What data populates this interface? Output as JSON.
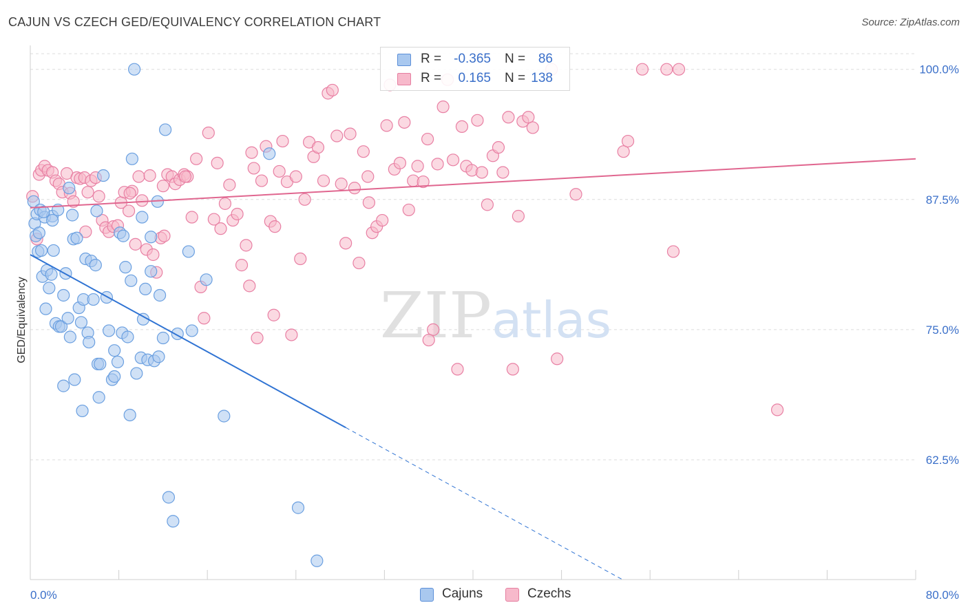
{
  "header": {
    "title": "CAJUN VS CZECH GED/EQUIVALENCY CORRELATION CHART",
    "source": "Source: ZipAtlas.com"
  },
  "legend": {
    "rows": [
      {
        "r_label": "R =",
        "r_value": "-0.365",
        "n_label": "N =",
        "n_value": "86",
        "color": "#a9c8ef",
        "border": "#5b8fd8"
      },
      {
        "r_label": "R =",
        "r_value": "0.165",
        "n_label": "N =",
        "n_value": "138",
        "color": "#f7b9cb",
        "border": "#e57ea0"
      }
    ],
    "bottom": [
      {
        "label": "Cajuns",
        "color": "#a9c8ef",
        "border": "#5b8fd8"
      },
      {
        "label": "Czechs",
        "color": "#f7b9cb",
        "border": "#e57ea0"
      }
    ]
  },
  "chart_data": {
    "type": "scatter",
    "title": "CAJUN VS CZECH GED/EQUIVALENCY CORRELATION CHART",
    "xlabel": "",
    "ylabel": "GED/Equivalency",
    "xlim": [
      0,
      80
    ],
    "ylim": [
      51,
      101.5
    ],
    "x_tick_labels": [
      "0.0%",
      "80.0%"
    ],
    "y_ticks": [
      62.5,
      75.0,
      87.5,
      100.0
    ],
    "y_tick_labels": [
      "62.5%",
      "75.0%",
      "87.5%",
      "100.0%"
    ],
    "grid": true,
    "watermark": "ZIPatlas",
    "series": [
      {
        "name": "Cajuns",
        "color": "#6a9fe0",
        "fill": "#a9c8ef",
        "r": -0.365,
        "n": 86,
        "trend": {
          "x0": 0,
          "y0": 82.2,
          "x1": 28.5,
          "y1": 65.6,
          "dash_to_x": 53.5,
          "dash_to_y": 51
        },
        "points": [
          [
            0.3,
            87.3
          ],
          [
            0.4,
            85.2
          ],
          [
            0.5,
            84.0
          ],
          [
            0.6,
            86.1
          ],
          [
            0.7,
            82.5
          ],
          [
            0.9,
            86.5
          ],
          [
            1.0,
            82.6
          ],
          [
            1.1,
            80.1
          ],
          [
            1.3,
            85.8
          ],
          [
            1.4,
            77.0
          ],
          [
            1.5,
            80.7
          ],
          [
            1.7,
            79.0
          ],
          [
            1.9,
            80.3
          ],
          [
            2.0,
            85.9
          ],
          [
            2.1,
            82.6
          ],
          [
            2.3,
            75.6
          ],
          [
            2.5,
            86.5
          ],
          [
            2.6,
            75.3
          ],
          [
            2.8,
            75.3
          ],
          [
            3.0,
            78.3
          ],
          [
            3.2,
            80.4
          ],
          [
            3.4,
            76.1
          ],
          [
            3.5,
            88.6
          ],
          [
            3.6,
            74.3
          ],
          [
            3.8,
            86.0
          ],
          [
            3.9,
            83.7
          ],
          [
            4.2,
            83.8
          ],
          [
            4.4,
            77.1
          ],
          [
            4.6,
            75.7
          ],
          [
            4.8,
            77.9
          ],
          [
            5.0,
            81.8
          ],
          [
            5.2,
            74.7
          ],
          [
            5.3,
            73.8
          ],
          [
            5.5,
            81.6
          ],
          [
            5.7,
            77.9
          ],
          [
            5.9,
            81.2
          ],
          [
            6.1,
            71.7
          ],
          [
            6.3,
            71.7
          ],
          [
            6.6,
            89.8
          ],
          [
            6.9,
            78.1
          ],
          [
            7.1,
            74.9
          ],
          [
            7.4,
            70.2
          ],
          [
            7.6,
            73.0
          ],
          [
            7.9,
            71.9
          ],
          [
            8.1,
            84.3
          ],
          [
            8.3,
            74.7
          ],
          [
            8.6,
            81.0
          ],
          [
            8.8,
            74.3
          ],
          [
            9.0,
            66.8
          ],
          [
            9.2,
            91.4
          ],
          [
            9.4,
            100.0
          ],
          [
            9.6,
            70.8
          ],
          [
            10.0,
            72.3
          ],
          [
            10.2,
            76.0
          ],
          [
            10.4,
            78.9
          ],
          [
            10.6,
            72.1
          ],
          [
            10.9,
            83.9
          ],
          [
            11.2,
            72.0
          ],
          [
            11.5,
            87.3
          ],
          [
            11.7,
            78.3
          ],
          [
            12.0,
            74.2
          ],
          [
            12.2,
            94.2
          ],
          [
            12.5,
            58.9
          ],
          [
            12.9,
            56.6
          ],
          [
            13.3,
            74.6
          ],
          [
            14.3,
            82.5
          ],
          [
            14.6,
            74.9
          ],
          [
            15.9,
            79.8
          ],
          [
            17.5,
            66.7
          ],
          [
            21.6,
            91.9
          ],
          [
            24.2,
            57.9
          ],
          [
            25.9,
            52.8
          ],
          [
            3.0,
            69.6
          ],
          [
            4.0,
            70.2
          ],
          [
            4.7,
            67.2
          ],
          [
            6.2,
            68.5
          ],
          [
            7.6,
            70.5
          ],
          [
            8.4,
            84.0
          ],
          [
            9.1,
            79.7
          ],
          [
            10.1,
            85.8
          ],
          [
            10.9,
            80.6
          ],
          [
            11.6,
            72.4
          ],
          [
            2.0,
            85.5
          ],
          [
            1.2,
            86.3
          ],
          [
            0.8,
            84.3
          ],
          [
            6.0,
            86.4
          ]
        ]
      },
      {
        "name": "Czechs",
        "color": "#e87fa3",
        "fill": "#f7b9cb",
        "r": 0.165,
        "n": 138,
        "trend": {
          "x0": 0,
          "y0": 86.7,
          "x1": 80,
          "y1": 91.4
        },
        "points": [
          [
            0.2,
            87.8
          ],
          [
            0.6,
            83.7
          ],
          [
            0.8,
            89.9
          ],
          [
            1.0,
            90.3
          ],
          [
            1.3,
            90.7
          ],
          [
            1.6,
            90.3
          ],
          [
            2.0,
            90.1
          ],
          [
            2.3,
            89.3
          ],
          [
            2.6,
            89.0
          ],
          [
            2.9,
            88.2
          ],
          [
            3.3,
            90.0
          ],
          [
            3.6,
            88.1
          ],
          [
            3.9,
            87.3
          ],
          [
            4.2,
            89.6
          ],
          [
            4.5,
            89.5
          ],
          [
            4.9,
            89.6
          ],
          [
            5.2,
            88.2
          ],
          [
            5.5,
            89.3
          ],
          [
            5.9,
            89.6
          ],
          [
            6.2,
            87.8
          ],
          [
            6.5,
            85.5
          ],
          [
            6.8,
            84.8
          ],
          [
            7.1,
            84.4
          ],
          [
            7.5,
            84.9
          ],
          [
            7.9,
            85.0
          ],
          [
            8.2,
            87.2
          ],
          [
            8.5,
            88.2
          ],
          [
            8.9,
            86.4
          ],
          [
            9.2,
            88.3
          ],
          [
            9.5,
            83.2
          ],
          [
            9.8,
            89.7
          ],
          [
            10.1,
            87.4
          ],
          [
            10.5,
            82.7
          ],
          [
            10.8,
            89.8
          ],
          [
            11.1,
            82.2
          ],
          [
            11.4,
            80.5
          ],
          [
            11.8,
            83.8
          ],
          [
            12.1,
            84.0
          ],
          [
            12.4,
            89.9
          ],
          [
            12.8,
            89.7
          ],
          [
            13.1,
            89.0
          ],
          [
            13.5,
            89.4
          ],
          [
            13.9,
            89.9
          ],
          [
            14.2,
            89.7
          ],
          [
            14.6,
            85.8
          ],
          [
            15.0,
            91.4
          ],
          [
            15.4,
            79.1
          ],
          [
            15.7,
            76.1
          ],
          [
            16.1,
            93.9
          ],
          [
            16.6,
            85.6
          ],
          [
            16.9,
            91.0
          ],
          [
            17.2,
            84.7
          ],
          [
            17.6,
            87.1
          ],
          [
            18.0,
            88.9
          ],
          [
            18.3,
            85.5
          ],
          [
            18.7,
            86.1
          ],
          [
            19.1,
            81.2
          ],
          [
            19.5,
            83.1
          ],
          [
            19.8,
            79.2
          ],
          [
            20.2,
            90.5
          ],
          [
            20.5,
            74.2
          ],
          [
            20.9,
            89.3
          ],
          [
            21.3,
            92.6
          ],
          [
            21.7,
            85.4
          ],
          [
            22.1,
            84.9
          ],
          [
            22.5,
            90.2
          ],
          [
            22.8,
            93.1
          ],
          [
            23.2,
            89.2
          ],
          [
            23.6,
            74.5
          ],
          [
            24.0,
            89.7
          ],
          [
            24.4,
            81.8
          ],
          [
            24.8,
            87.5
          ],
          [
            25.2,
            93.0
          ],
          [
            25.6,
            91.6
          ],
          [
            26.0,
            92.5
          ],
          [
            26.5,
            89.3
          ],
          [
            26.9,
            97.7
          ],
          [
            27.3,
            98.0
          ],
          [
            27.7,
            93.6
          ],
          [
            28.1,
            89.0
          ],
          [
            28.5,
            83.3
          ],
          [
            28.9,
            93.8
          ],
          [
            29.3,
            88.6
          ],
          [
            29.7,
            81.4
          ],
          [
            30.1,
            92.1
          ],
          [
            30.6,
            87.2
          ],
          [
            30.9,
            84.3
          ],
          [
            31.3,
            84.9
          ],
          [
            31.8,
            85.5
          ],
          [
            32.2,
            94.6
          ],
          [
            32.5,
            98.5
          ],
          [
            32.9,
            90.4
          ],
          [
            33.4,
            91.0
          ],
          [
            33.8,
            94.9
          ],
          [
            34.2,
            86.5
          ],
          [
            34.6,
            89.3
          ],
          [
            35.0,
            90.7
          ],
          [
            35.5,
            89.2
          ],
          [
            35.9,
            93.3
          ],
          [
            36.4,
            75.0
          ],
          [
            36.8,
            90.9
          ],
          [
            37.3,
            96.4
          ],
          [
            37.7,
            99.0
          ],
          [
            38.2,
            91.3
          ],
          [
            38.6,
            71.2
          ],
          [
            39.0,
            94.5
          ],
          [
            39.4,
            90.7
          ],
          [
            39.9,
            90.3
          ],
          [
            40.4,
            95.1
          ],
          [
            40.8,
            90.1
          ],
          [
            41.3,
            87.0
          ],
          [
            41.8,
            91.7
          ],
          [
            42.3,
            92.5
          ],
          [
            42.7,
            90.1
          ],
          [
            43.2,
            95.4
          ],
          [
            43.6,
            71.2
          ],
          [
            44.1,
            85.9
          ],
          [
            44.5,
            95.0
          ],
          [
            45.0,
            95.4
          ],
          [
            45.4,
            94.4
          ],
          [
            47.1,
            100.0
          ],
          [
            47.6,
            72.2
          ],
          [
            49.3,
            88.0
          ],
          [
            53.6,
            92.1
          ],
          [
            54.0,
            93.1
          ],
          [
            55.3,
            100.0
          ],
          [
            57.5,
            100.0
          ],
          [
            58.1,
            82.5
          ],
          [
            58.6,
            100.0
          ],
          [
            67.5,
            67.3
          ],
          [
            9.0,
            88.1
          ],
          [
            12.0,
            88.8
          ],
          [
            20.0,
            92.0
          ],
          [
            14.0,
            89.7
          ],
          [
            30.5,
            89.7
          ],
          [
            5.0,
            84.4
          ],
          [
            36.0,
            74.0
          ],
          [
            22.0,
            76.4
          ]
        ]
      }
    ]
  }
}
